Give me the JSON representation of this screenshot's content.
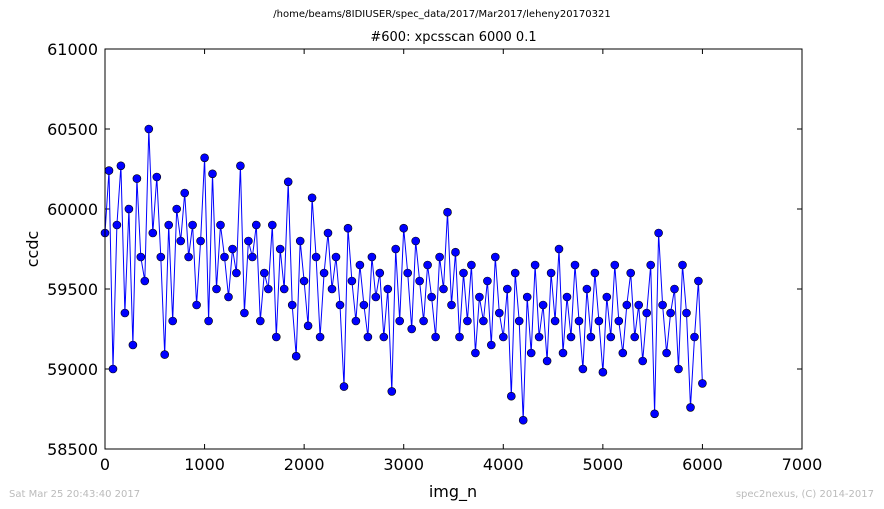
{
  "header": {
    "suptitle": "/home/beams/8IDIUSER/spec_data/2017/Mar2017/leheny20170321"
  },
  "footer": {
    "timestamp": "Sat Mar 25 20:43:40 2017",
    "credit": "spec2nexus, (C) 2014-2017"
  },
  "chart_data": {
    "type": "line",
    "title": "#600: xpcsscan 6000 0.1",
    "xlabel": "img_n",
    "ylabel": "ccdc",
    "xlim": [
      0,
      7000
    ],
    "ylim": [
      58500,
      61000
    ],
    "xticks": [
      "0",
      "1000",
      "2000",
      "3000",
      "4000",
      "5000",
      "6000",
      "7000"
    ],
    "yticks": [
      "58500",
      "59000",
      "59500",
      "60000",
      "60500",
      "61000"
    ],
    "grid": false,
    "series": [
      {
        "color": "#0000ff",
        "marker": "circle",
        "x": [
          0,
          40,
          80,
          120,
          160,
          200,
          240,
          280,
          320,
          360,
          400,
          440,
          480,
          520,
          560,
          600,
          640,
          680,
          720,
          760,
          800,
          840,
          880,
          920,
          960,
          1000,
          1040,
          1080,
          1120,
          1160,
          1200,
          1240,
          1280,
          1320,
          1360,
          1400,
          1440,
          1480,
          1520,
          1560,
          1600,
          1640,
          1680,
          1720,
          1760,
          1800,
          1840,
          1880,
          1920,
          1960,
          2000,
          2040,
          2080,
          2120,
          2160,
          2200,
          2240,
          2280,
          2320,
          2360,
          2400,
          2440,
          2480,
          2520,
          2560,
          2600,
          2640,
          2680,
          2720,
          2760,
          2800,
          2840,
          2880,
          2920,
          2960,
          3000,
          3040,
          3080,
          3120,
          3160,
          3200,
          3240,
          3280,
          3320,
          3360,
          3400,
          3440,
          3480,
          3520,
          3560,
          3600,
          3640,
          3680,
          3720,
          3760,
          3800,
          3840,
          3880,
          3920,
          3960,
          4000,
          4040,
          4080,
          4120,
          4160,
          4200,
          4240,
          4280,
          4320,
          4360,
          4400,
          4440,
          4480,
          4520,
          4560,
          4600,
          4640,
          4680,
          4720,
          4760,
          4800,
          4840,
          4880,
          4920,
          4960,
          5000,
          5040,
          5080,
          5120,
          5160,
          5200,
          5240,
          5280,
          5320,
          5360,
          5400,
          5440,
          5480,
          5520,
          5560,
          5600,
          5640,
          5680,
          5720,
          5760,
          5800,
          5840,
          5880,
          5920,
          5960,
          6000
        ],
        "y": [
          59850,
          60240,
          59000,
          59900,
          60270,
          59350,
          60000,
          59150,
          60190,
          59700,
          59550,
          60500,
          59850,
          60200,
          59700,
          59090,
          59900,
          59300,
          60000,
          59800,
          60100,
          59700,
          59900,
          59400,
          59800,
          60320,
          59300,
          60220,
          59500,
          59900,
          59700,
          59450,
          59750,
          59600,
          60270,
          59350,
          59800,
          59700,
          59900,
          59300,
          59600,
          59500,
          59900,
          59200,
          59750,
          59500,
          60170,
          59400,
          59080,
          59800,
          59550,
          59270,
          60070,
          59700,
          59200,
          59600,
          59850,
          59500,
          59700,
          59400,
          58890,
          59880,
          59550,
          59300,
          59650,
          59400,
          59200,
          59700,
          59450,
          59600,
          59200,
          59500,
          58860,
          59750,
          59300,
          59880,
          59600,
          59250,
          59800,
          59550,
          59300,
          59650,
          59450,
          59200,
          59700,
          59500,
          59980,
          59400,
          59730,
          59200,
          59600,
          59300,
          59650,
          59100,
          59450,
          59300,
          59550,
          59150,
          59700,
          59350,
          59200,
          59500,
          58830,
          59600,
          59300,
          58680,
          59450,
          59100,
          59650,
          59200,
          59400,
          59050,
          59600,
          59300,
          59750,
          59100,
          59450,
          59200,
          59650,
          59300,
          59000,
          59500,
          59200,
          59600,
          59300,
          58980,
          59450,
          59200,
          59650,
          59300,
          59100,
          59400,
          59600,
          59200,
          59400,
          59050,
          59350,
          59650,
          58720,
          59850,
          59400,
          59100,
          59350,
          59500,
          59000,
          59650,
          59350,
          58760,
          59200,
          59550,
          58910
        ]
      }
    ]
  }
}
